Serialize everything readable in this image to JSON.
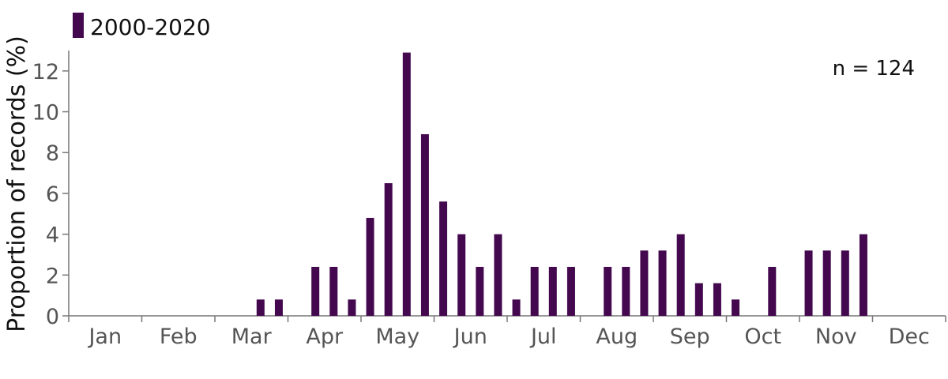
{
  "chart_data": {
    "type": "bar",
    "title": "",
    "xlabel": "",
    "ylabel": "Proportion of records (%)",
    "ylim": [
      0,
      13
    ],
    "yticks": [
      0,
      2,
      4,
      6,
      8,
      10,
      12
    ],
    "months": [
      "Jan",
      "Feb",
      "Mar",
      "Apr",
      "May",
      "Jun",
      "Jul",
      "Aug",
      "Sep",
      "Oct",
      "Nov",
      "Dec"
    ],
    "bars_per_month": 4,
    "series": [
      {
        "name": "2000-2020",
        "color": "#44084f",
        "values": [
          0,
          0,
          0,
          0,
          0,
          0,
          0,
          0,
          0,
          0,
          0.8,
          0.8,
          0,
          2.4,
          2.4,
          0.8,
          4.8,
          6.5,
          12.9,
          8.9,
          5.6,
          4.0,
          2.4,
          4.0,
          0.8,
          2.4,
          2.4,
          2.4,
          0,
          2.4,
          2.4,
          3.2,
          3.2,
          4.0,
          1.6,
          1.6,
          0.8,
          0,
          2.4,
          0,
          3.2,
          3.2,
          3.2,
          4.0,
          0,
          0,
          0,
          0
        ]
      }
    ],
    "grid": false,
    "legend": "top-left",
    "annotation": "n = 124"
  }
}
